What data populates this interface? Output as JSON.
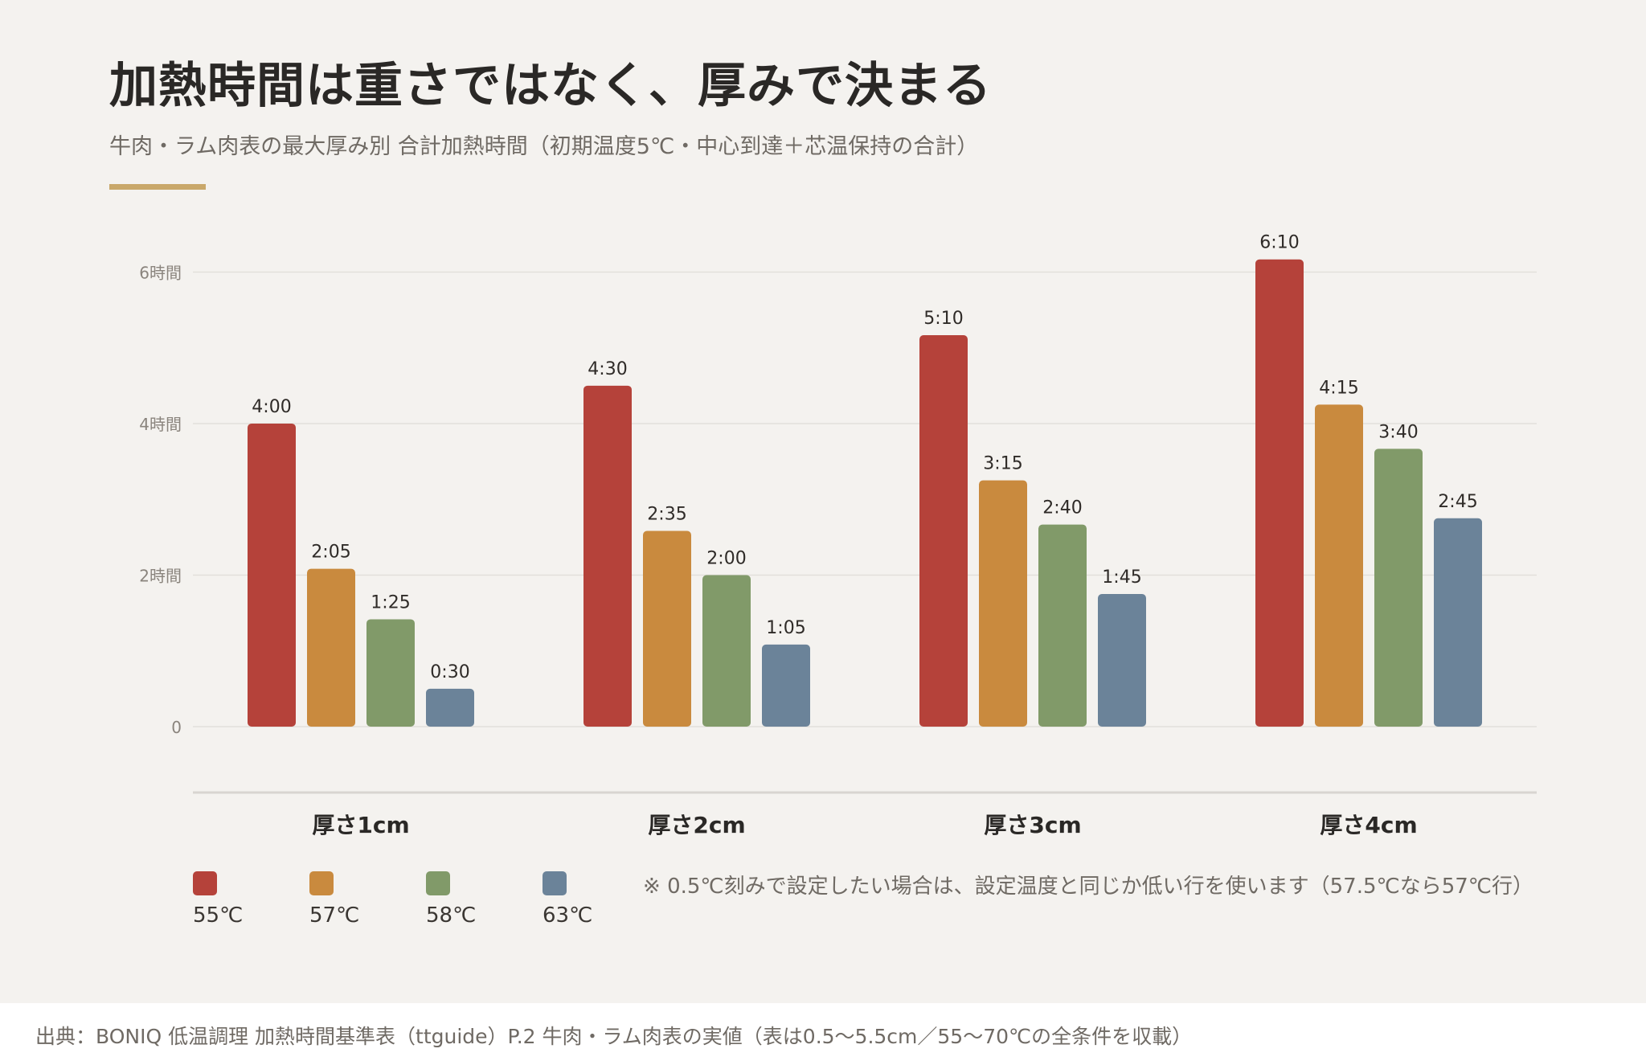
{
  "title": "加熱時間は重さではなく、厚みで決まる",
  "subtitle": "牛肉・ラム肉表の最大厚み別 合計加熱時間（初期温度5℃・中心到達＋芯温保持の合計）",
  "note": "※ 0.5℃刻みで設定したい場合は、設定温度と同じか低い行を使います（57.5℃なら57℃行）",
  "source": "出典：BONIQ 低温調理 加熱時間基準表（ttguide）P.2 牛肉・ラム肉表の実値（表は0.5〜5.5cm／55〜70℃の全条件を収載）",
  "colors": {
    "background": "#f4f2ef",
    "accent": "#c9a86a",
    "grid": "#e2dfdb",
    "axis": "#d8d5d1"
  },
  "chart_data": {
    "type": "bar",
    "categories": [
      "厚さ1cm",
      "厚さ2cm",
      "厚さ3cm",
      "厚さ4cm"
    ],
    "y_unit": "minutes",
    "ylim": [
      0,
      380
    ],
    "y_ticks": [
      {
        "value": 0,
        "label": "0"
      },
      {
        "value": 120,
        "label": "2時間"
      },
      {
        "value": 240,
        "label": "4時間"
      },
      {
        "value": 360,
        "label": "6時間"
      }
    ],
    "legend_position": "bottom-left",
    "grid": true,
    "series": [
      {
        "name": "55℃",
        "color": "#b5423a",
        "values": [
          240,
          270,
          310,
          370
        ],
        "labels": [
          "4:00",
          "4:30",
          "5:10",
          "6:10"
        ]
      },
      {
        "name": "57℃",
        "color": "#c98a3e",
        "values": [
          125,
          155,
          195,
          255
        ],
        "labels": [
          "2:05",
          "2:35",
          "3:15",
          "4:15"
        ]
      },
      {
        "name": "58℃",
        "color": "#819a69",
        "values": [
          85,
          120,
          160,
          220
        ],
        "labels": [
          "1:25",
          "2:00",
          "2:40",
          "3:40"
        ]
      },
      {
        "name": "63℃",
        "color": "#6b8399",
        "values": [
          30,
          65,
          105,
          165
        ],
        "labels": [
          "0:30",
          "1:05",
          "1:45",
          "2:45"
        ]
      }
    ]
  }
}
